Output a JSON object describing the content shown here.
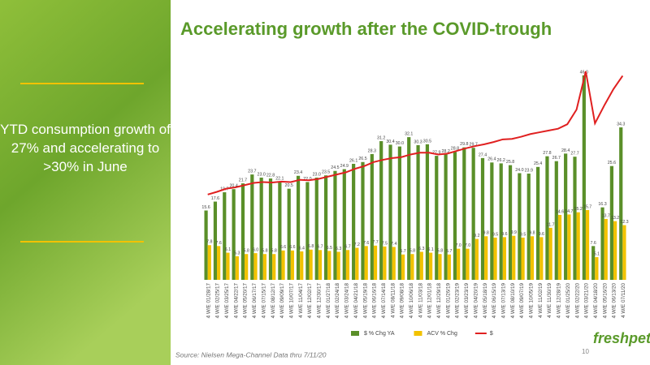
{
  "sidebar": {
    "text": "YTD consumption growth of 27% and accelerating to >30% in June"
  },
  "source": "Source:  Nielsen Mega-Channel Data thru 7/11/20",
  "page_number": "10",
  "logo": "freshpet",
  "chart_data": {
    "type": "bar-line",
    "title": "Accelerating growth after the COVID-trough",
    "categories": [
      "4 W/E 01/28/17",
      "4 W/E 02/25/17",
      "4 W/E 03/25/17",
      "4 W/E 04/22/17",
      "4 W/E 05/20/17",
      "4 W/E 06/17/17",
      "4 W/E 07/15/17",
      "4 W/E 08/12/17",
      "4 W/E 09/09/17",
      "4 W/E 10/07/17",
      "4 W/E 11/04/17",
      "4 W/E 12/02/17",
      "4 W/E 12/30/17",
      "4 W/E 01/27/18",
      "4 W/E 02/24/18",
      "4 W/E 03/24/18",
      "4 W/E 04/21/18",
      "4 W/E 05/19/18",
      "4 W/E 06/16/18",
      "4 W/E 07/14/18",
      "4 W/E 08/11/18",
      "4 W/E 09/08/18",
      "4 W/E 10/06/18",
      "4 W/E 11/03/18",
      "4 W/E 12/01/18",
      "4 W/E 12/29/18",
      "4 W/E 01/26/19",
      "4 W/E 02/23/19",
      "4 W/E 03/23/19",
      "4 W/E 04/20/19",
      "4 W/E 05/18/19",
      "4 W/E 06/15/19",
      "4 W/E 07/13/19",
      "4 W/E 08/10/19",
      "4 W/E 09/07/19",
      "4 W/E 10/05/19",
      "4 W/E 11/02/19",
      "4 W/E 11/30/19",
      "4 W/E 12/28/19",
      "4 W/E 01/25/20",
      "4 W/E 02/22/20",
      "4 W/E 03/21/20",
      "4 W/E 04/18/20",
      "4 W/E 05/16/20",
      "4 W/E 06/13/20",
      "4 W/E 07/11/20"
    ],
    "ylim": [
      0,
      50
    ],
    "y2lim": [
      0,
      50
    ],
    "series": [
      {
        "name": "$ % Chg YA",
        "color": "#5a8f29",
        "kind": "bar",
        "values": [
          15.6,
          17.6,
          19.7,
          20.4,
          21.7,
          23.7,
          23.0,
          22.8,
          22.1,
          20.5,
          23.4,
          22.0,
          23.0,
          23.5,
          24.5,
          24.9,
          26.1,
          26.5,
          28.3,
          31.2,
          30.4,
          30.0,
          32.1,
          30.3,
          30.5,
          27.9,
          28.2,
          28.8,
          29.8,
          29.7,
          27.4,
          26.4,
          26.2,
          25.8,
          24.0,
          23.9,
          25.4,
          27.8,
          26.7,
          28.4,
          27.7,
          46.0,
          7.6,
          16.3,
          25.6,
          34.3
        ],
        "value_labels": [
          "15.6",
          "17.6",
          "19.7",
          "20.4",
          "21.7",
          "23.7",
          "23.0",
          "22.8",
          "22.1",
          "20.5",
          "23.4",
          "22.0",
          "23.0",
          "23.5",
          "24.5",
          "24.9",
          "26.1",
          "26.5",
          "28.3",
          "31.2",
          "30.4",
          "30.0",
          "32.1",
          "30.3",
          "30.5",
          "27.9",
          "28.2",
          "28.8",
          "29.8",
          "29.7",
          "27.4",
          "26.4",
          "26.2",
          "25.8",
          "24.0",
          "23.9",
          "25.4",
          "27.8",
          "26.7",
          "28.4",
          "27.7",
          "46.0",
          "7.6",
          "16.3",
          "25.6",
          "34.3"
        ]
      },
      {
        "name": "ACV % Chg",
        "color": "#f2c200",
        "kind": "bar",
        "values": [
          7.8,
          7.6,
          6.1,
          5.3,
          5.8,
          6.0,
          5.8,
          5.8,
          6.6,
          6.6,
          6.4,
          6.8,
          6.7,
          6.5,
          6.3,
          6.7,
          7.2,
          7.6,
          7.7,
          7.5,
          7.4,
          5.7,
          5.8,
          6.3,
          6.1,
          5.8,
          5.7,
          7.0,
          7.0,
          9.2,
          9.8,
          9.5,
          9.6,
          9.9,
          9.5,
          9.8,
          9.6,
          11.7,
          14.6,
          14.7,
          15.2,
          15.7,
          5.1,
          13.7,
          13.2,
          12.3
        ],
        "value_labels": [
          "7.8",
          "7.6",
          "6.1",
          "5.3",
          "5.8",
          "6.0",
          "5.8",
          "5.8",
          "6.6",
          "6.6",
          "6.4",
          "6.8",
          "6.7",
          "6.5",
          "6.3",
          "6.7",
          "7.2",
          "7.6",
          "7.7",
          "7.5",
          "7.4",
          "5.7",
          "5.8",
          "6.3",
          "6.1",
          "5.8",
          "5.7",
          "7.0",
          "7.0",
          "9.2",
          "9.8",
          "9.5",
          "9.6",
          "9.9",
          "9.5",
          "9.8",
          "9.6",
          "11.7",
          "14.6",
          "14.7",
          "15.2",
          "15.7",
          "5.1",
          "13.7",
          "13.2",
          "12.3"
        ]
      },
      {
        "name": "$",
        "color": "#e02020",
        "kind": "line",
        "axis": "y2",
        "values": [
          19.2,
          19.8,
          20.5,
          20.8,
          21.3,
          21.8,
          22.0,
          21.9,
          22.1,
          22.0,
          22.5,
          22.4,
          22.7,
          23.2,
          23.7,
          24.2,
          25.0,
          25.6,
          26.5,
          27.0,
          27.4,
          27.6,
          28.2,
          28.6,
          28.6,
          28.2,
          28.4,
          29.0,
          29.6,
          30.1,
          30.5,
          31.0,
          31.6,
          31.7,
          32.2,
          32.8,
          33.2,
          33.6,
          34.0,
          35.0,
          38.3,
          46.9,
          35.2,
          39.2,
          42.9,
          45.9
        ]
      }
    ]
  }
}
